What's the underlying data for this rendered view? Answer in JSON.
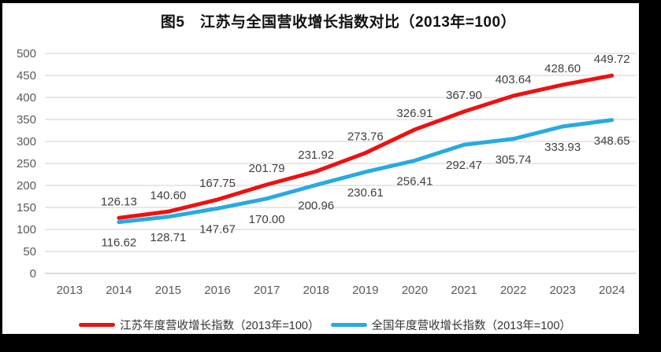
{
  "title": "图5　江苏与全国营收增长指数对比（2013年=100）",
  "legend": [
    {
      "label": "江苏年度营收增长指数（2013年=100）",
      "color": "#ee1111"
    },
    {
      "label": "全国年度营收增长指数（2013年=100）",
      "color": "#27aae1"
    }
  ],
  "colors": {
    "grid": "#d9d9d9",
    "axis_line": "#c8c8c8",
    "tick_label": "#595959",
    "data_label": "#404040",
    "background": "#ffffff",
    "frame_border": "#000000"
  },
  "chart_data": {
    "type": "line",
    "title": "图5　江苏与全国营收增长指数对比（2013年=100）",
    "categories": [
      "2013",
      "2014",
      "2015",
      "2016",
      "2017",
      "2018",
      "2019",
      "2020",
      "2021",
      "2022",
      "2023",
      "2024"
    ],
    "yticks": [
      "0",
      "50",
      "100",
      "150",
      "200",
      "250",
      "300",
      "350",
      "400",
      "450",
      "500"
    ],
    "ylim": [
      0,
      500
    ],
    "grid": true,
    "legend_position": "bottom",
    "series": [
      {
        "id": "jiangsu",
        "name": "江苏年度营收增长指数（2013年=100）",
        "color": "#ee1111",
        "start_index": 1,
        "label_position": "above",
        "values": [
          126.13,
          140.6,
          167.75,
          201.79,
          231.92,
          273.76,
          326.91,
          367.9,
          403.64,
          428.6,
          449.72
        ],
        "labels": [
          "126.13",
          "140.60",
          "167.75",
          "201.79",
          "231.92",
          "273.76",
          "326.91",
          "367.90",
          "403.64",
          "428.60",
          "449.72"
        ]
      },
      {
        "id": "national",
        "name": "全国年度营收增长指数（2013年=100）",
        "color": "#27aae1",
        "start_index": 1,
        "label_position": "below",
        "values": [
          116.62,
          128.71,
          147.67,
          170.0,
          200.96,
          230.61,
          256.41,
          292.47,
          305.74,
          333.93,
          348.65
        ],
        "labels": [
          "116.62",
          "128.71",
          "147.67",
          "170.00",
          "200.96",
          "230.61",
          "256.41",
          "292.47",
          "305.74",
          "333.93",
          "348.65"
        ]
      }
    ]
  }
}
